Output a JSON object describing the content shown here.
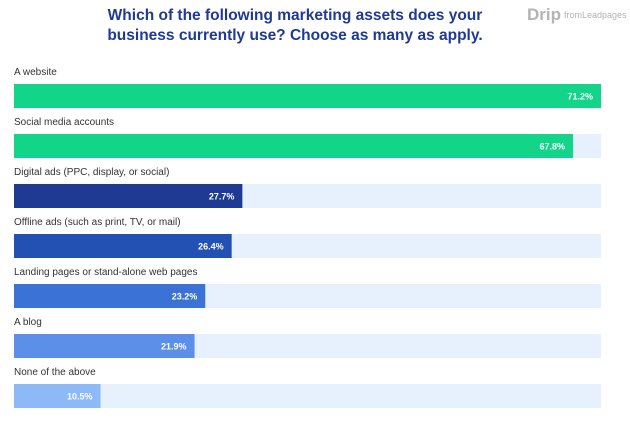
{
  "logo": {
    "main": "Drip",
    "small": "from",
    "brand": "Leadpages"
  },
  "chart_data": {
    "type": "bar",
    "orientation": "horizontal",
    "title": "Which of the following marketing assets does your business currently use? Choose as many as apply.",
    "title_lines": [
      "Which of the following marketing assets does your",
      "business currently use? Choose as many as apply."
    ],
    "categories": [
      "A website",
      "Social media accounts",
      "Digital ads (PPC, display, or social)",
      "Offline ads (such as print, TV, or mail)",
      "Landing pages or stand-alone web pages",
      "A blog",
      "None of the above"
    ],
    "values": [
      71.2,
      67.8,
      27.7,
      26.4,
      23.2,
      21.9,
      10.5
    ],
    "value_labels": [
      "71.2%",
      "67.8%",
      "27.7%",
      "26.4%",
      "23.2%",
      "21.9%",
      "10.5%"
    ],
    "xlim": [
      0,
      71.2
    ],
    "grid": false,
    "legend": "none",
    "colors": {
      "bars": [
        "#12d58a",
        "#12d58a",
        "#1f3a93",
        "#2350b3",
        "#3a72d6",
        "#5b8fe8",
        "#8db9f7"
      ],
      "track": "#e7f0fd",
      "title": "#1f3a93",
      "label": "#333333",
      "value": "#ffffff"
    }
  }
}
